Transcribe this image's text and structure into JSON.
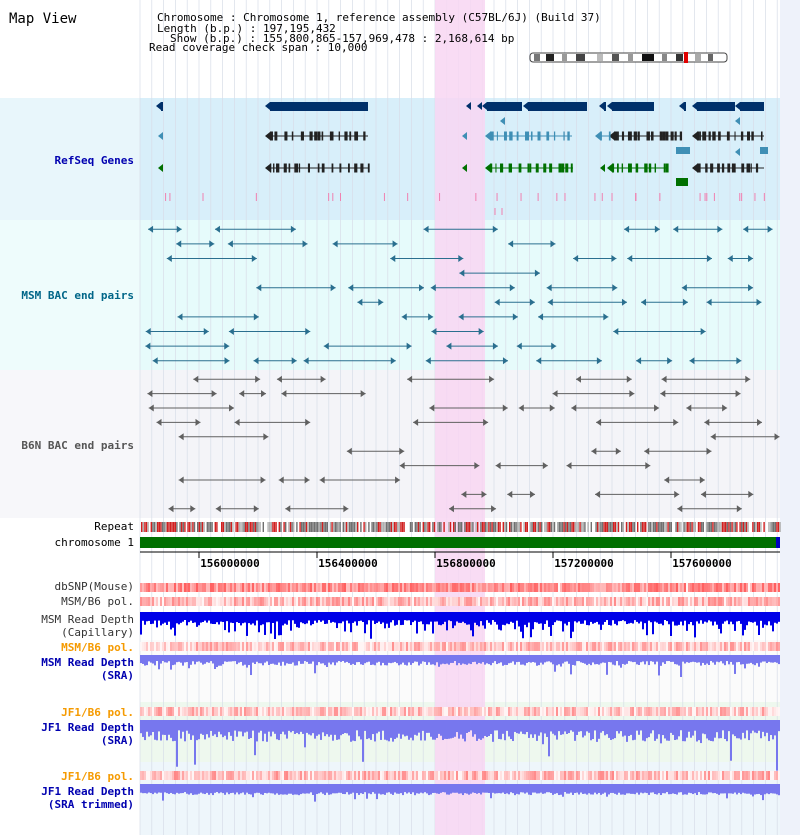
{
  "title": "Map View",
  "header": {
    "chromosome": "Chromosome    : Chromosome 1, reference assembly (C57BL/6J) (Build 37)",
    "length": "Length (b.p.) : 197,195,432",
    "show": "Show (b.p.) : 155,800,865-157,969,478 : 2,168,614 bp",
    "coverage": "Read coverage check span : 10,000"
  },
  "axis_ticks": [
    "156000000",
    "156400000",
    "156800000",
    "157200000",
    "157600000"
  ],
  "tracks": {
    "refseq": "RefSeq Genes",
    "msm_bac": "MSM BAC end pairs",
    "b6n_bac": "B6N BAC end pairs",
    "repeat": "Repeat",
    "chromosome": "chromosome 1",
    "dbsnp": "dbSNP(Mouse)",
    "msm_b6_pol": "MSM/B6 pol.",
    "msm_depth_cap_1": "MSM Read Depth",
    "msm_depth_cap_2": "(Capillary)",
    "msm_b6_pol_2": "MSM/B6 pol.",
    "msm_depth_sra_1": "MSM Read Depth",
    "msm_depth_sra_2": "(SRA)",
    "jf1_b6_pol": "JF1/B6 pol.",
    "jf1_depth_sra_1": "JF1 Read Depth",
    "jf1_depth_sra_2": "(SRA)",
    "jf1_b6_pol_2": "JF1/B6 pol.",
    "jf1_depth_trim_1": "JF1 Read Depth",
    "jf1_depth_trim_2": "(SRA trimmed)"
  },
  "colors": {
    "highlight": "#f8d6f2",
    "refseq_bg": "#d8effa",
    "msm_bg": "#e6fbfb",
    "b6n_bg": "#f4f4f8",
    "gene_dark": "#00306a",
    "gene_mid": "#3f8fb5",
    "gene_green": "#007000",
    "bac_msm": "#2a6f8f",
    "bac_b6n": "#606060",
    "snp": "#f06060",
    "depth_cap": "#0000e8",
    "depth_sra": "#7777ee",
    "label_blue": "#0000b0",
    "label_orange": "#f59a00",
    "label_teal": "#006688",
    "label_gray": "#555555"
  }
}
